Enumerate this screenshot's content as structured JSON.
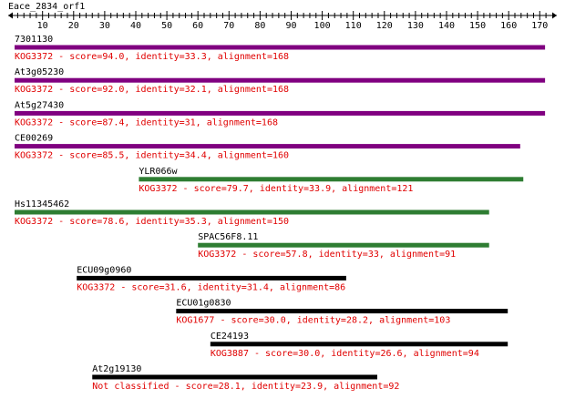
{
  "query": {
    "name": "Eace_2834_orf1",
    "length": 172,
    "tick_labels": [
      "10",
      "20",
      "30",
      "40",
      "50",
      "60",
      "70",
      "80",
      "90",
      "100",
      "110",
      "120",
      "130",
      "140",
      "150",
      "160",
      "170"
    ]
  },
  "chart_data": {
    "type": "alignment-track",
    "xlim": [
      1,
      172
    ],
    "hits": [
      {
        "name": "7301130",
        "start": 1,
        "end": 172,
        "color": "#800080",
        "label": "KOG3372 - score=94.0, identity=33.3, alignment=168"
      },
      {
        "name": "At3g05230",
        "start": 1,
        "end": 172,
        "color": "#800080",
        "label": "KOG3372 - score=92.0, identity=32.1, alignment=168"
      },
      {
        "name": "At5g27430",
        "start": 1,
        "end": 172,
        "color": "#800080",
        "label": "KOG3372 - score=87.4, identity=31, alignment=168"
      },
      {
        "name": "CE00269",
        "start": 1,
        "end": 164,
        "color": "#800080",
        "label": "KOG3372 - score=85.5, identity=34.4, alignment=160"
      },
      {
        "name": "YLR066w",
        "start": 41,
        "end": 165,
        "color": "#2e7d32",
        "label": "KOG3372 - score=79.7, identity=33.9, alignment=121"
      },
      {
        "name": "Hs11345462",
        "start": 1,
        "end": 154,
        "color": "#2e7d32",
        "label": "KOG3372 - score=78.6, identity=35.3, alignment=150"
      },
      {
        "name": "SPAC56F8.11",
        "start": 60,
        "end": 154,
        "color": "#2e7d32",
        "label": "KOG3372 - score=57.8, identity=33, alignment=91"
      },
      {
        "name": "ECU09g0960",
        "start": 21,
        "end": 108,
        "color": "#000000",
        "label": "KOG3372 - score=31.6, identity=31.4, alignment=86"
      },
      {
        "name": "ECU01g0830",
        "start": 53,
        "end": 160,
        "color": "#000000",
        "label": "KOG1677 - score=30.0, identity=28.2, alignment=103"
      },
      {
        "name": "CE24193",
        "start": 64,
        "end": 160,
        "color": "#000000",
        "label": "KOG3887 - score=30.0, identity=26.6, alignment=94"
      },
      {
        "name": "At2g19130",
        "start": 26,
        "end": 118,
        "color": "#000000",
        "label": "Not classified - score=28.1, identity=23.9, alignment=92"
      }
    ]
  },
  "colors": {
    "label_red": "#e00000",
    "axis": "#000000"
  }
}
